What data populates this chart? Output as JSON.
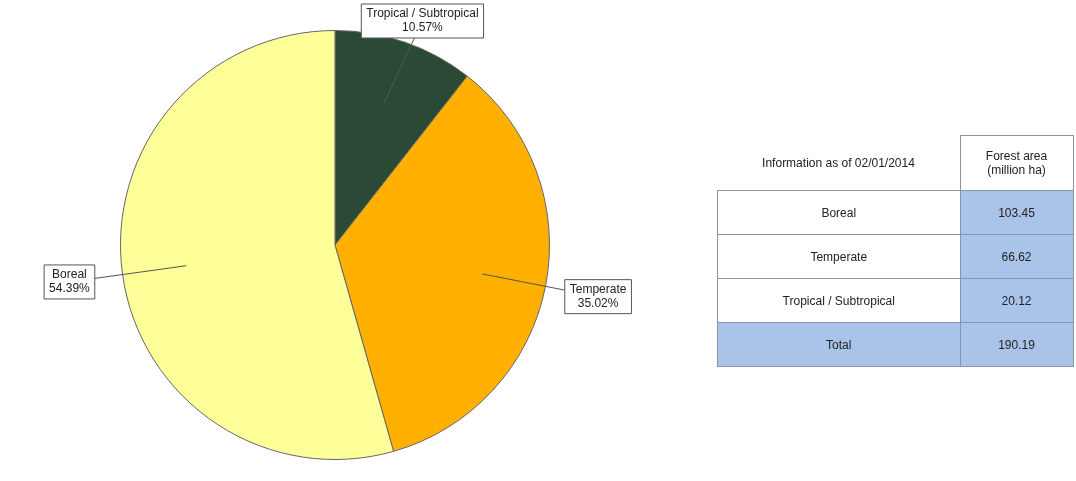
{
  "chart_data": {
    "type": "pie",
    "categories": [
      "Tropical / Subtropical",
      "Temperate",
      "Boreal"
    ],
    "values": [
      10.57,
      35.02,
      54.39
    ],
    "colors": [
      "#2b4a36",
      "#ffb000",
      "#ffff99"
    ],
    "value_labels": [
      "10.57%",
      "35.02%",
      "54.39%"
    ],
    "annotations": [
      "Information as of 02/01/2014",
      "Forest area (million ha)",
      "Boreal",
      "103.45",
      "Temperate",
      "66.62",
      "Tropical / Subtropical",
      "20.12",
      "Total",
      "190.19"
    ]
  }
}
